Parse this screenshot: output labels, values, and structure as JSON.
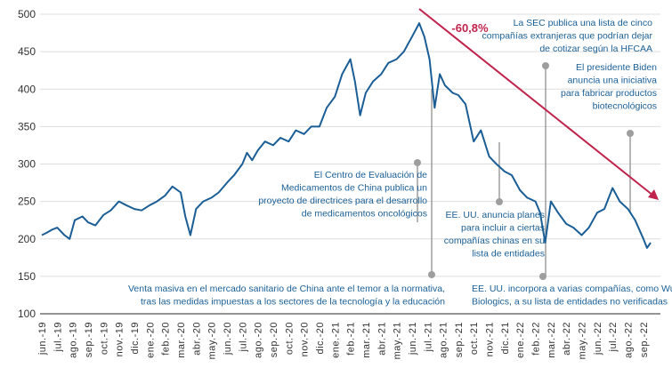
{
  "chart_data": {
    "type": "line",
    "title": "",
    "xlabel": "",
    "ylabel": "",
    "ylim": [
      100,
      500
    ],
    "yticks": [
      100,
      150,
      200,
      250,
      300,
      350,
      400,
      450,
      500
    ],
    "grid": true,
    "x_tick_labels": [
      "jun.-19",
      "jul.-19",
      "ago.-19",
      "sep.-19",
      "oct.-19",
      "nov.-19",
      "dic.-19",
      "ene.-20",
      "feb.-20",
      "mar.-20",
      "abr.-20",
      "may.-20",
      "jun.-20",
      "jul.-20",
      "ago.-20",
      "sep.-20",
      "oct.-20",
      "nov.-20",
      "dic.-20",
      "ene.-21",
      "feb.-21",
      "mar.-21",
      "abr.-21",
      "may.-21",
      "jun.-21",
      "jul.-21",
      "ago.-21",
      "sep.-21",
      "oct.-21",
      "nov.-21",
      "dic.-21",
      "ene.-22",
      "feb.-22",
      "mar.-22",
      "abr.-22",
      "may.-22",
      "jun.-22",
      "jul.-22",
      "ago.-22",
      "sep.-22"
    ],
    "colors": {
      "line": "#1b5e96",
      "trend": "#c0234b",
      "annotation": "#1a5f96",
      "marker": "#9e9e9e"
    },
    "series": [
      {
        "points": [
          [
            "2019-06-01",
            205
          ],
          [
            "2019-06-10",
            208
          ],
          [
            "2019-06-20",
            212
          ],
          [
            "2019-07-01",
            215
          ],
          [
            "2019-07-15",
            205
          ],
          [
            "2019-07-25",
            200
          ],
          [
            "2019-08-05",
            225
          ],
          [
            "2019-08-20",
            230
          ],
          [
            "2019-09-01",
            222
          ],
          [
            "2019-09-15",
            218
          ],
          [
            "2019-10-01",
            232
          ],
          [
            "2019-10-15",
            238
          ],
          [
            "2019-11-01",
            250
          ],
          [
            "2019-11-15",
            245
          ],
          [
            "2019-12-01",
            240
          ],
          [
            "2019-12-15",
            238
          ],
          [
            "2020-01-01",
            245
          ],
          [
            "2020-01-15",
            250
          ],
          [
            "2020-02-01",
            258
          ],
          [
            "2020-02-15",
            270
          ],
          [
            "2020-03-01",
            262
          ],
          [
            "2020-03-10",
            230
          ],
          [
            "2020-03-20",
            205
          ],
          [
            "2020-04-01",
            240
          ],
          [
            "2020-04-15",
            250
          ],
          [
            "2020-05-01",
            255
          ],
          [
            "2020-05-15",
            262
          ],
          [
            "2020-06-01",
            275
          ],
          [
            "2020-06-15",
            285
          ],
          [
            "2020-07-01",
            300
          ],
          [
            "2020-07-10",
            315
          ],
          [
            "2020-07-20",
            305
          ],
          [
            "2020-08-01",
            318
          ],
          [
            "2020-08-15",
            330
          ],
          [
            "2020-09-01",
            325
          ],
          [
            "2020-09-15",
            335
          ],
          [
            "2020-10-01",
            330
          ],
          [
            "2020-10-15",
            345
          ],
          [
            "2020-11-01",
            340
          ],
          [
            "2020-11-15",
            350
          ],
          [
            "2020-12-01",
            350
          ],
          [
            "2020-12-15",
            375
          ],
          [
            "2021-01-01",
            390
          ],
          [
            "2021-01-15",
            420
          ],
          [
            "2021-02-01",
            440
          ],
          [
            "2021-02-10",
            410
          ],
          [
            "2021-02-20",
            365
          ],
          [
            "2021-03-01",
            395
          ],
          [
            "2021-03-15",
            410
          ],
          [
            "2021-04-01",
            420
          ],
          [
            "2021-04-15",
            435
          ],
          [
            "2021-05-01",
            440
          ],
          [
            "2021-05-15",
            450
          ],
          [
            "2021-06-01",
            470
          ],
          [
            "2021-06-15",
            488
          ],
          [
            "2021-06-25",
            470
          ],
          [
            "2021-07-05",
            440
          ],
          [
            "2021-07-15",
            375
          ],
          [
            "2021-07-25",
            420
          ],
          [
            "2021-08-05",
            405
          ],
          [
            "2021-08-20",
            395
          ],
          [
            "2021-09-01",
            392
          ],
          [
            "2021-09-15",
            380
          ],
          [
            "2021-10-01",
            330
          ],
          [
            "2021-10-15",
            345
          ],
          [
            "2021-11-01",
            310
          ],
          [
            "2021-11-15",
            300
          ],
          [
            "2021-12-01",
            290
          ],
          [
            "2021-12-15",
            285
          ],
          [
            "2022-01-01",
            265
          ],
          [
            "2022-01-15",
            255
          ],
          [
            "2022-02-01",
            250
          ],
          [
            "2022-02-10",
            235
          ],
          [
            "2022-02-20",
            195
          ],
          [
            "2022-03-01",
            250
          ],
          [
            "2022-03-15",
            235
          ],
          [
            "2022-04-01",
            220
          ],
          [
            "2022-04-15",
            215
          ],
          [
            "2022-05-01",
            205
          ],
          [
            "2022-05-15",
            215
          ],
          [
            "2022-06-01",
            235
          ],
          [
            "2022-06-15",
            240
          ],
          [
            "2022-07-01",
            268
          ],
          [
            "2022-07-15",
            250
          ],
          [
            "2022-08-01",
            240
          ],
          [
            "2022-08-15",
            225
          ],
          [
            "2022-09-01",
            200
          ],
          [
            "2022-09-08",
            188
          ],
          [
            "2022-09-15",
            195
          ]
        ]
      }
    ],
    "trend": {
      "from": [
        "2021-06-15",
        488
      ],
      "to": [
        "2022-09-30",
        250
      ],
      "label": "-60,8%"
    },
    "annotations": [
      {
        "lines": [
          "El Centro de Evaluación de",
          "Medicamentos de China publica un",
          "proyecto de directrices para el desarrollo",
          "de medicamentos oncológicos"
        ]
      },
      {
        "lines": [
          "Venta masiva en el mercado sanitario de China ante el temor a la normativa,",
          "tras las medidas impuestas a los sectores de la tecnología y la educación"
        ]
      },
      {
        "lines": [
          "EE. UU. anuncia planes",
          "para incluir a ciertas",
          "compañías chinas en su",
          "lista de entidades"
        ]
      },
      {
        "lines": [
          "La SEC publica una lista de cinco",
          "compañías extranjeras que podrían dejar",
          "de cotizar según la HFCAA"
        ]
      },
      {
        "lines": [
          "EE. UU. incorpora a varias compañías, como WuXi",
          "Biologics, a su lista de entidades no verificadas"
        ]
      },
      {
        "lines": [
          "El presidente Biden",
          "anuncia una iniciativa",
          "para fabricar productos",
          "biotecnológicos"
        ]
      }
    ]
  }
}
